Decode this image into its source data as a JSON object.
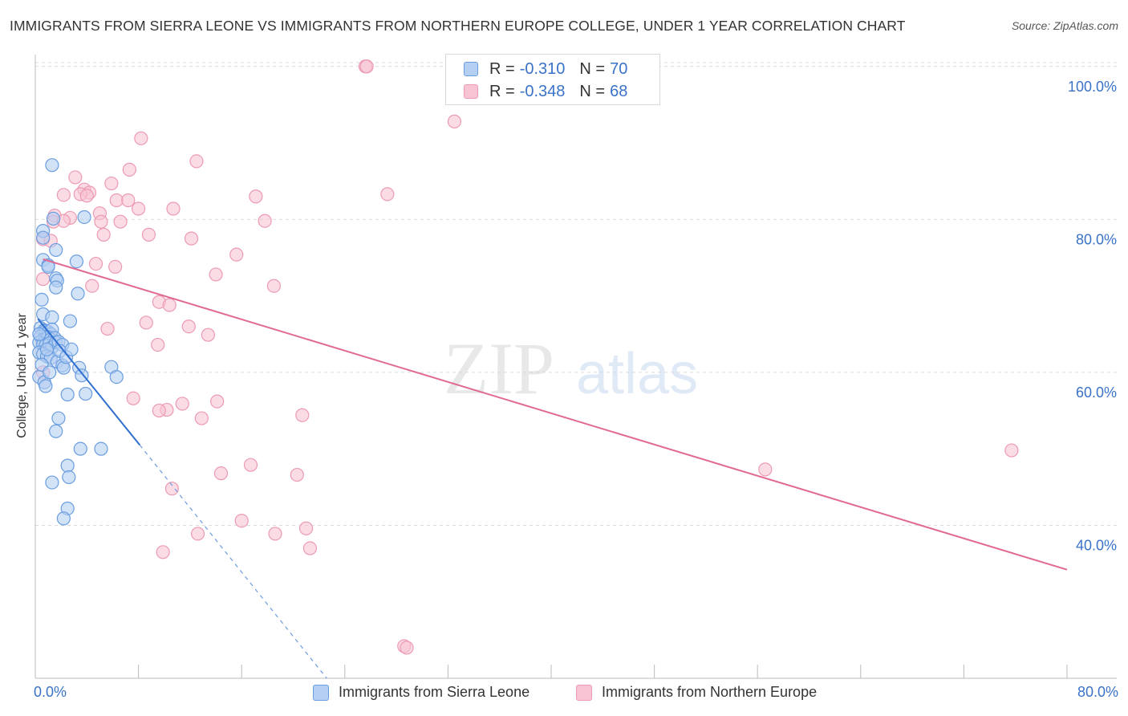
{
  "title": "IMMIGRANTS FROM SIERRA LEONE VS IMMIGRANTS FROM NORTHERN EUROPE COLLEGE, UNDER 1 YEAR CORRELATION CHART",
  "source": "Source: ZipAtlas.com",
  "watermark": {
    "zip": "ZIP",
    "atlas": "atlas"
  },
  "legend": {
    "r_label": "R =",
    "n_label": "N =",
    "series1": {
      "r": "-0.310",
      "n": "70"
    },
    "series2": {
      "r": "-0.348",
      "n": "68"
    }
  },
  "colors": {
    "blue_fill": "#b4cff2",
    "blue_stroke": "#6a9de0",
    "blue_line": "#2f6fd0",
    "pink_fill": "#f8c4d3",
    "pink_stroke": "#ec9ab3",
    "pink_line": "#e06a92",
    "tick_text": "#3a72c8",
    "grid": "#dcdcdc"
  },
  "chart_data": {
    "type": "scatter",
    "title": "IMMIGRANTS FROM SIERRA LEONE VS IMMIGRANTS FROM NORTHERN EUROPE COLLEGE, UNDER 1 YEAR CORRELATION CHART",
    "xlabel": "",
    "ylabel": "College, Under 1 year",
    "xlim": [
      0,
      80
    ],
    "ylim": [
      20,
      104
    ],
    "x_tick_labels": {
      "min": "0.0%",
      "max": "80.0%"
    },
    "y_ticks": [
      {
        "value": 40,
        "label": "40.0%"
      },
      {
        "value": 60,
        "label": "60.0%"
      },
      {
        "value": 80,
        "label": "80.0%"
      },
      {
        "value": 100,
        "label": "100.0%"
      }
    ],
    "grid": true,
    "legend_position": "top-center",
    "series": [
      {
        "name": "Immigrants from Sierra Leone",
        "r": -0.31,
        "n": 70,
        "trend": {
          "x0": 0.2,
          "y0": 67.0,
          "x1": 8.1,
          "y1": 50.5,
          "dash_to_x": 22.6,
          "dash_to_y": 20.0
        },
        "points": [
          [
            1.3,
            87.1
          ],
          [
            0.6,
            78.5
          ],
          [
            0.6,
            77.6
          ],
          [
            1.4,
            80.1
          ],
          [
            1.6,
            76.0
          ],
          [
            0.6,
            74.7
          ],
          [
            1.0,
            74.0
          ],
          [
            1.0,
            73.8
          ],
          [
            3.2,
            74.5
          ],
          [
            3.8,
            80.3
          ],
          [
            1.6,
            72.3
          ],
          [
            1.7,
            72.0
          ],
          [
            1.6,
            71.1
          ],
          [
            3.3,
            70.3
          ],
          [
            0.5,
            69.5
          ],
          [
            0.6,
            67.6
          ],
          [
            1.3,
            67.2
          ],
          [
            2.7,
            66.7
          ],
          [
            0.4,
            65.8
          ],
          [
            0.7,
            65.5
          ],
          [
            0.8,
            65.4
          ],
          [
            1.0,
            65.3
          ],
          [
            1.2,
            65.0
          ],
          [
            1.3,
            65.6
          ],
          [
            0.4,
            64.7
          ],
          [
            0.6,
            64.3
          ],
          [
            0.8,
            64.4
          ],
          [
            1.0,
            64.6
          ],
          [
            1.2,
            64.3
          ],
          [
            1.5,
            64.5
          ],
          [
            0.3,
            63.9
          ],
          [
            0.6,
            63.7
          ],
          [
            0.8,
            63.5
          ],
          [
            1.1,
            63.8
          ],
          [
            1.3,
            63.3
          ],
          [
            1.6,
            63.9
          ],
          [
            1.8,
            64.0
          ],
          [
            2.1,
            63.6
          ],
          [
            0.3,
            62.6
          ],
          [
            0.6,
            62.4
          ],
          [
            0.9,
            62.1
          ],
          [
            1.2,
            61.9
          ],
          [
            1.7,
            61.4
          ],
          [
            2.1,
            60.9
          ],
          [
            2.2,
            60.6
          ],
          [
            3.4,
            60.6
          ],
          [
            3.6,
            59.6
          ],
          [
            5.9,
            60.7
          ],
          [
            6.3,
            59.4
          ],
          [
            0.3,
            59.4
          ],
          [
            0.7,
            58.7
          ],
          [
            0.8,
            58.2
          ],
          [
            2.5,
            57.1
          ],
          [
            3.9,
            57.2
          ],
          [
            1.8,
            54.0
          ],
          [
            1.6,
            52.3
          ],
          [
            3.5,
            50.0
          ],
          [
            5.1,
            50.0
          ],
          [
            2.5,
            47.8
          ],
          [
            2.6,
            46.3
          ],
          [
            1.3,
            45.6
          ],
          [
            2.5,
            42.2
          ],
          [
            2.2,
            40.9
          ],
          [
            0.3,
            65.0
          ],
          [
            0.9,
            63.0
          ],
          [
            1.9,
            62.8
          ],
          [
            2.4,
            62.0
          ],
          [
            0.5,
            61.0
          ],
          [
            1.1,
            60.0
          ],
          [
            2.8,
            63.0
          ]
        ]
      },
      {
        "name": "Immigrants from Northern Europe",
        "r": -0.348,
        "n": 68,
        "trend": {
          "x0": 0.6,
          "y0": 74.8,
          "x1": 80.0,
          "y1": 34.2
        },
        "points": [
          [
            25.6,
            100.0
          ],
          [
            25.7,
            100.0
          ],
          [
            32.5,
            92.8
          ],
          [
            8.2,
            90.6
          ],
          [
            12.5,
            87.6
          ],
          [
            7.3,
            86.5
          ],
          [
            3.1,
            85.5
          ],
          [
            5.9,
            84.7
          ],
          [
            3.8,
            83.9
          ],
          [
            4.2,
            83.5
          ],
          [
            3.5,
            83.3
          ],
          [
            4.0,
            83.1
          ],
          [
            2.2,
            83.2
          ],
          [
            17.1,
            83.0
          ],
          [
            27.3,
            83.3
          ],
          [
            6.3,
            82.5
          ],
          [
            7.2,
            82.5
          ],
          [
            8.0,
            81.4
          ],
          [
            10.7,
            81.4
          ],
          [
            1.5,
            80.5
          ],
          [
            5.0,
            80.8
          ],
          [
            2.7,
            80.2
          ],
          [
            1.4,
            79.7
          ],
          [
            2.2,
            79.8
          ],
          [
            5.1,
            79.7
          ],
          [
            6.6,
            79.7
          ],
          [
            17.8,
            79.8
          ],
          [
            5.3,
            78.0
          ],
          [
            8.8,
            78.0
          ],
          [
            12.1,
            77.5
          ],
          [
            0.6,
            77.4
          ],
          [
            1.2,
            77.2
          ],
          [
            15.6,
            75.4
          ],
          [
            4.7,
            74.2
          ],
          [
            6.2,
            73.8
          ],
          [
            14.0,
            72.8
          ],
          [
            0.6,
            72.2
          ],
          [
            4.4,
            71.3
          ],
          [
            18.5,
            71.3
          ],
          [
            9.6,
            69.2
          ],
          [
            10.4,
            68.8
          ],
          [
            8.6,
            66.5
          ],
          [
            11.9,
            66.0
          ],
          [
            5.6,
            65.7
          ],
          [
            13.4,
            64.9
          ],
          [
            9.5,
            63.6
          ],
          [
            0.6,
            60.0
          ],
          [
            7.6,
            56.6
          ],
          [
            11.4,
            55.9
          ],
          [
            10.2,
            55.1
          ],
          [
            14.1,
            56.2
          ],
          [
            9.6,
            55.0
          ],
          [
            12.9,
            54.0
          ],
          [
            20.7,
            54.4
          ],
          [
            75.7,
            49.8
          ],
          [
            56.6,
            47.3
          ],
          [
            16.7,
            47.9
          ],
          [
            14.4,
            46.8
          ],
          [
            20.3,
            46.6
          ],
          [
            10.6,
            44.8
          ],
          [
            16.0,
            40.6
          ],
          [
            12.6,
            38.9
          ],
          [
            18.6,
            38.9
          ],
          [
            21.0,
            39.6
          ],
          [
            9.9,
            36.5
          ],
          [
            21.3,
            37.0
          ],
          [
            28.6,
            24.2
          ],
          [
            28.8,
            24.0
          ]
        ]
      }
    ]
  }
}
